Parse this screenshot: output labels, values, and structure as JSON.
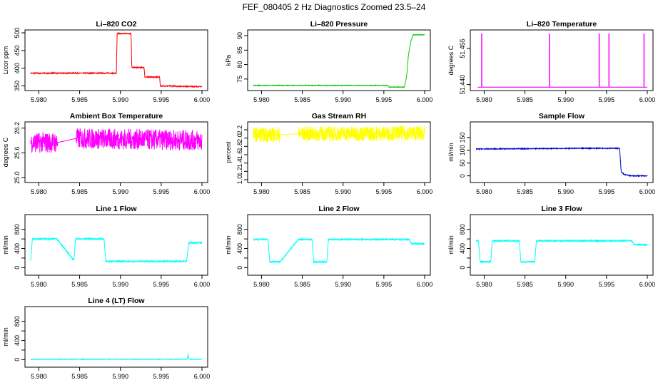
{
  "figure_title": "FEF_080405  2 Hz Diagnostics Zoomed 23.5–24",
  "chart_data": [
    {
      "type": "line",
      "title": "Li–820 CO2",
      "ylabel": "Licor ppm",
      "color": "#ff0000",
      "xlim": [
        5.979,
        6.0
      ],
      "xticks": [
        5.98,
        5.985,
        5.99,
        5.995,
        6.0
      ],
      "xtick_labels": [
        "5.980",
        "5.985",
        "5.990",
        "5.995",
        "6.000"
      ],
      "ylim": [
        345,
        500
      ],
      "yticks": [
        350,
        400,
        450,
        500
      ],
      "ytick_labels": [
        "350",
        "400",
        "450",
        "500"
      ],
      "noise": 1.5,
      "x": [
        5.979,
        5.9895,
        5.9896,
        5.9913,
        5.9914,
        5.9929,
        5.993,
        5.9948,
        5.9949,
        6.0
      ],
      "y": [
        386,
        386,
        498,
        498,
        402,
        402,
        375,
        375,
        350,
        348
      ]
    },
    {
      "type": "line",
      "title": "Li–820 Pressure",
      "ylabel": "kPa",
      "color": "#00cc00",
      "xlim": [
        5.979,
        6.0
      ],
      "xticks": [
        5.98,
        5.985,
        5.99,
        5.995,
        6.0
      ],
      "xtick_labels": [
        "5.980",
        "5.985",
        "5.990",
        "5.995",
        "6.000"
      ],
      "ylim": [
        72,
        91
      ],
      "yticks": [
        75,
        80,
        85,
        90
      ],
      "ytick_labels": [
        "75",
        "80",
        "85",
        "90"
      ],
      "noise": 0.1,
      "x": [
        5.979,
        5.9955,
        5.9956,
        5.9975,
        5.9978,
        5.998,
        5.9983,
        5.9986,
        6.0
      ],
      "y": [
        72.8,
        72.8,
        72.2,
        72.2,
        76,
        83,
        88,
        90.3,
        90.3
      ]
    },
    {
      "type": "spikes",
      "title": "Li–820 Temperature",
      "ylabel": "degrees C",
      "color": "#ff00ff",
      "xlim": [
        5.979,
        6.0
      ],
      "xticks": [
        5.98,
        5.985,
        5.99,
        5.995,
        6.0
      ],
      "xtick_labels": [
        "5.980",
        "5.985",
        "5.990",
        "5.995",
        "6.000"
      ],
      "ylim": [
        51.4387,
        51.4615
      ],
      "yticks": [
        51.44,
        51.455
      ],
      "ytick_labels": [
        "51.440",
        "51.455"
      ],
      "baseline": 51.4389,
      "spike_peak": 51.4612,
      "spike_x": [
        5.9797,
        5.988,
        5.9941,
        5.9953,
        5.9996
      ]
    },
    {
      "type": "line",
      "title": "Ambient Box Temperature",
      "ylabel": "degrees C",
      "color": "#ff00ff",
      "xlim": [
        5.979,
        6.0
      ],
      "xticks": [
        5.98,
        5.985,
        5.99,
        5.995,
        6.0
      ],
      "xtick_labels": [
        "5.980",
        "5.985",
        "5.990",
        "5.995",
        "6.000"
      ],
      "ylim": [
        24.95,
        26.28
      ],
      "yticks": [
        25.0,
        25.6,
        26.2
      ],
      "ytick_labels": [
        "25.0",
        "25.6",
        "26.2"
      ],
      "noise": 0.25,
      "x": [
        5.979,
        5.9823,
        5.9846,
        6.0
      ],
      "y": [
        25.85,
        25.85,
        25.95,
        25.9
      ],
      "gaps": [
        [
          5.9823,
          5.9846
        ]
      ]
    },
    {
      "type": "line",
      "title": "Gas Stream RH",
      "ylabel": "percent",
      "color": "#ffff00",
      "xlim": [
        5.979,
        6.0
      ],
      "xticks": [
        5.98,
        5.985,
        5.99,
        5.995,
        6.0
      ],
      "xtick_labels": [
        "5.980",
        "5.985",
        "5.990",
        "5.995",
        "6.000"
      ],
      "ylim": [
        1.0,
        2.32
      ],
      "yticks": [
        1.0,
        1.2,
        1.4,
        1.6,
        1.8,
        2.0,
        2.2
      ],
      "ytick_labels": [
        "1.0",
        "1.2",
        "1.4",
        "1.6",
        "1.8",
        "2.0",
        "2.2"
      ],
      "noise": 0.18,
      "x": [
        5.979,
        5.9823,
        5.9845,
        6.0
      ],
      "y": [
        2.08,
        2.08,
        2.1,
        2.12
      ],
      "gaps": [
        [
          5.9823,
          5.9845
        ]
      ]
    },
    {
      "type": "line",
      "title": "Sample Flow",
      "ylabel": "ml/min",
      "color": "#0000cc",
      "xlim": [
        5.979,
        6.0
      ],
      "xticks": [
        5.98,
        5.985,
        5.99,
        5.995,
        6.0
      ],
      "xtick_labels": [
        "5.980",
        "5.985",
        "5.990",
        "5.995",
        "6.000"
      ],
      "ylim": [
        -15,
        200
      ],
      "yticks": [
        0,
        50,
        100,
        150
      ],
      "ytick_labels": [
        "0",
        "50",
        "100",
        "150"
      ],
      "noise": 1.5,
      "x": [
        5.979,
        5.9929,
        5.9934,
        5.9966,
        5.9968,
        5.9972,
        5.998,
        6.0
      ],
      "y": [
        105,
        108,
        108,
        108,
        15,
        5,
        0,
        0
      ]
    },
    {
      "type": "line",
      "title": "Line 1 Flow",
      "ylabel": "ml/min",
      "color": "#00ffff",
      "xlim": [
        5.979,
        6.0
      ],
      "xticks": [
        5.98,
        5.985,
        5.99,
        5.995,
        6.0
      ],
      "xtick_labels": [
        "5.980",
        "5.985",
        "5.990",
        "5.995",
        "6.000"
      ],
      "ylim": [
        -100,
        1050
      ],
      "yticks": [
        0,
        200,
        400,
        600,
        800
      ],
      "ytick_labels": [
        "0",
        "400",
        "800"
      ],
      "noise": 15,
      "x": [
        5.979,
        5.9792,
        5.9822,
        5.9843,
        5.9845,
        5.988,
        5.9882,
        5.9981,
        5.9984,
        6.0
      ],
      "y": [
        150,
        600,
        600,
        150,
        600,
        600,
        130,
        130,
        520,
        520
      ]
    },
    {
      "type": "line",
      "title": "Line 2 Flow",
      "ylabel": "ml/min",
      "color": "#00ffff",
      "xlim": [
        5.979,
        6.0
      ],
      "xticks": [
        5.98,
        5.985,
        5.99,
        5.995,
        6.0
      ],
      "xtick_labels": [
        "5.980",
        "5.985",
        "5.990",
        "5.995",
        "6.000"
      ],
      "ylim": [
        -100,
        1050
      ],
      "yticks": [
        0,
        200,
        400,
        600,
        800
      ],
      "ytick_labels": [
        "0",
        "400",
        "800"
      ],
      "noise": 15,
      "x": [
        5.979,
        5.9808,
        5.981,
        5.9823,
        5.9845,
        5.9862,
        5.9864,
        5.988,
        5.9882,
        5.9981,
        5.9984,
        6.0
      ],
      "y": [
        590,
        590,
        120,
        120,
        590,
        590,
        120,
        120,
        590,
        590,
        500,
        500
      ]
    },
    {
      "type": "line",
      "title": "Line 3 Flow",
      "ylabel": "ml/min",
      "color": "#00ffff",
      "xlim": [
        5.979,
        6.0
      ],
      "xticks": [
        5.98,
        5.985,
        5.99,
        5.995,
        6.0
      ],
      "xtick_labels": [
        "5.980",
        "5.985",
        "5.990",
        "5.995",
        "6.000"
      ],
      "ylim": [
        -100,
        1050
      ],
      "yticks": [
        0,
        200,
        400,
        600,
        800
      ],
      "ytick_labels": [
        "0",
        "400",
        "800"
      ],
      "noise": 15,
      "x": [
        5.979,
        5.9793,
        5.9795,
        5.9808,
        5.981,
        5.9843,
        5.9845,
        5.9862,
        5.9864,
        5.9981,
        5.9984,
        6.0
      ],
      "y": [
        560,
        560,
        120,
        120,
        560,
        560,
        120,
        120,
        560,
        560,
        480,
        480
      ]
    },
    {
      "type": "line",
      "title": "Line 4 (LT) Flow",
      "ylabel": "ml/min",
      "color": "#00ffff",
      "xlim": [
        5.979,
        6.0
      ],
      "xticks": [
        5.98,
        5.985,
        5.99,
        5.995,
        6.0
      ],
      "xtick_labels": [
        "5.980",
        "5.985",
        "5.990",
        "5.995",
        "6.000"
      ],
      "ylim": [
        -100,
        1050
      ],
      "yticks": [
        0,
        200,
        400,
        600,
        800
      ],
      "ytick_labels": [
        "0",
        "400",
        "800"
      ],
      "noise": 5,
      "x": [
        5.979,
        5.9982,
        5.9983,
        5.9984,
        6.0
      ],
      "y": [
        5,
        5,
        120,
        5,
        5
      ]
    }
  ]
}
